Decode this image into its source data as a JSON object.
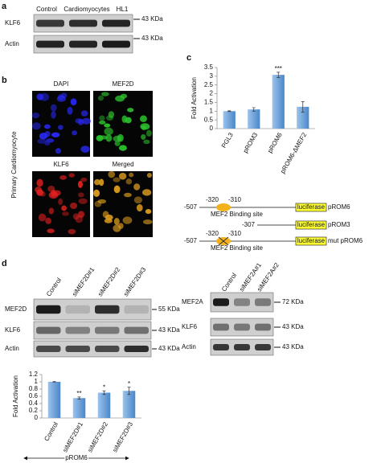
{
  "panel_labels": [
    "a",
    "b",
    "c",
    "d"
  ],
  "blot_a": {
    "lanes": [
      "Control",
      "Cardiomyocytes",
      "HL1"
    ],
    "rows": [
      "KLF6",
      "Actin"
    ],
    "sizes": [
      "43 KDa",
      "43 KDa"
    ]
  },
  "images": {
    "channels": [
      "DAPI",
      "MEF2D",
      "KLF6",
      "Merged"
    ],
    "side_label": "Primary Cardiomyocyte"
  },
  "promoter": {
    "constructs": [
      {
        "start": "-507",
        "site": [
          "-320",
          "-310"
        ],
        "reporter": "luciferase",
        "name": "pROM6",
        "site_label": "MEF2 Binding site"
      },
      {
        "start": "-307",
        "reporter": "luciferase",
        "name": "pROM3"
      },
      {
        "start": "-507",
        "site": [
          "-320",
          "-310"
        ],
        "reporter": "luciferase",
        "name": "mut pROM6",
        "site_label": "MEF2 Binding site"
      }
    ]
  },
  "blot_d_left": {
    "lanes": [
      "Control",
      "siMEF2D#1",
      "siMEF2D#2",
      "siMEF2D#3"
    ],
    "rows": [
      "MEF2D",
      "KLF6",
      "Actin"
    ],
    "sizes": [
      "55 KDa",
      "43 KDa",
      "43 KDa"
    ]
  },
  "blot_d_right": {
    "lanes": [
      "Control",
      "siMEF2A#1",
      "siMEF2A#2"
    ],
    "rows": [
      "MEF2A",
      "KLF6",
      "Actin"
    ],
    "sizes": [
      "72 KDa",
      "43 KDa",
      "43 KDa"
    ]
  },
  "chart_data": [
    {
      "type": "bar",
      "y_label": "Fold Activation",
      "categories": [
        "PGL3",
        "pROM3",
        "pROM6",
        "pROM6-ΔMEF2"
      ],
      "values": [
        1.0,
        1.1,
        3.08,
        1.25
      ],
      "errors": [
        0.02,
        0.1,
        0.15,
        0.3
      ],
      "annotations": [
        null,
        null,
        "***",
        null
      ],
      "color": "#5b9bd5",
      "ylim": [
        0,
        3.5
      ],
      "yticks": [
        0,
        0.5,
        1,
        1.5,
        2,
        2.5,
        3,
        3.5
      ]
    },
    {
      "type": "bar",
      "y_label": "Fold Activation",
      "x_label": "pROM6",
      "categories": [
        "Control",
        "siMEF2D#1",
        "siMEF2D#2",
        "siMEF2D#3"
      ],
      "values": [
        1.0,
        0.55,
        0.7,
        0.75
      ],
      "errors": [
        0.01,
        0.03,
        0.05,
        0.1
      ],
      "annotations": [
        null,
        "**",
        "*",
        "*"
      ],
      "color": "#5b9bd5",
      "ylim": [
        0,
        1.2
      ],
      "yticks": [
        0,
        0.2,
        0.4,
        0.6,
        0.8,
        1,
        1.2
      ]
    }
  ]
}
